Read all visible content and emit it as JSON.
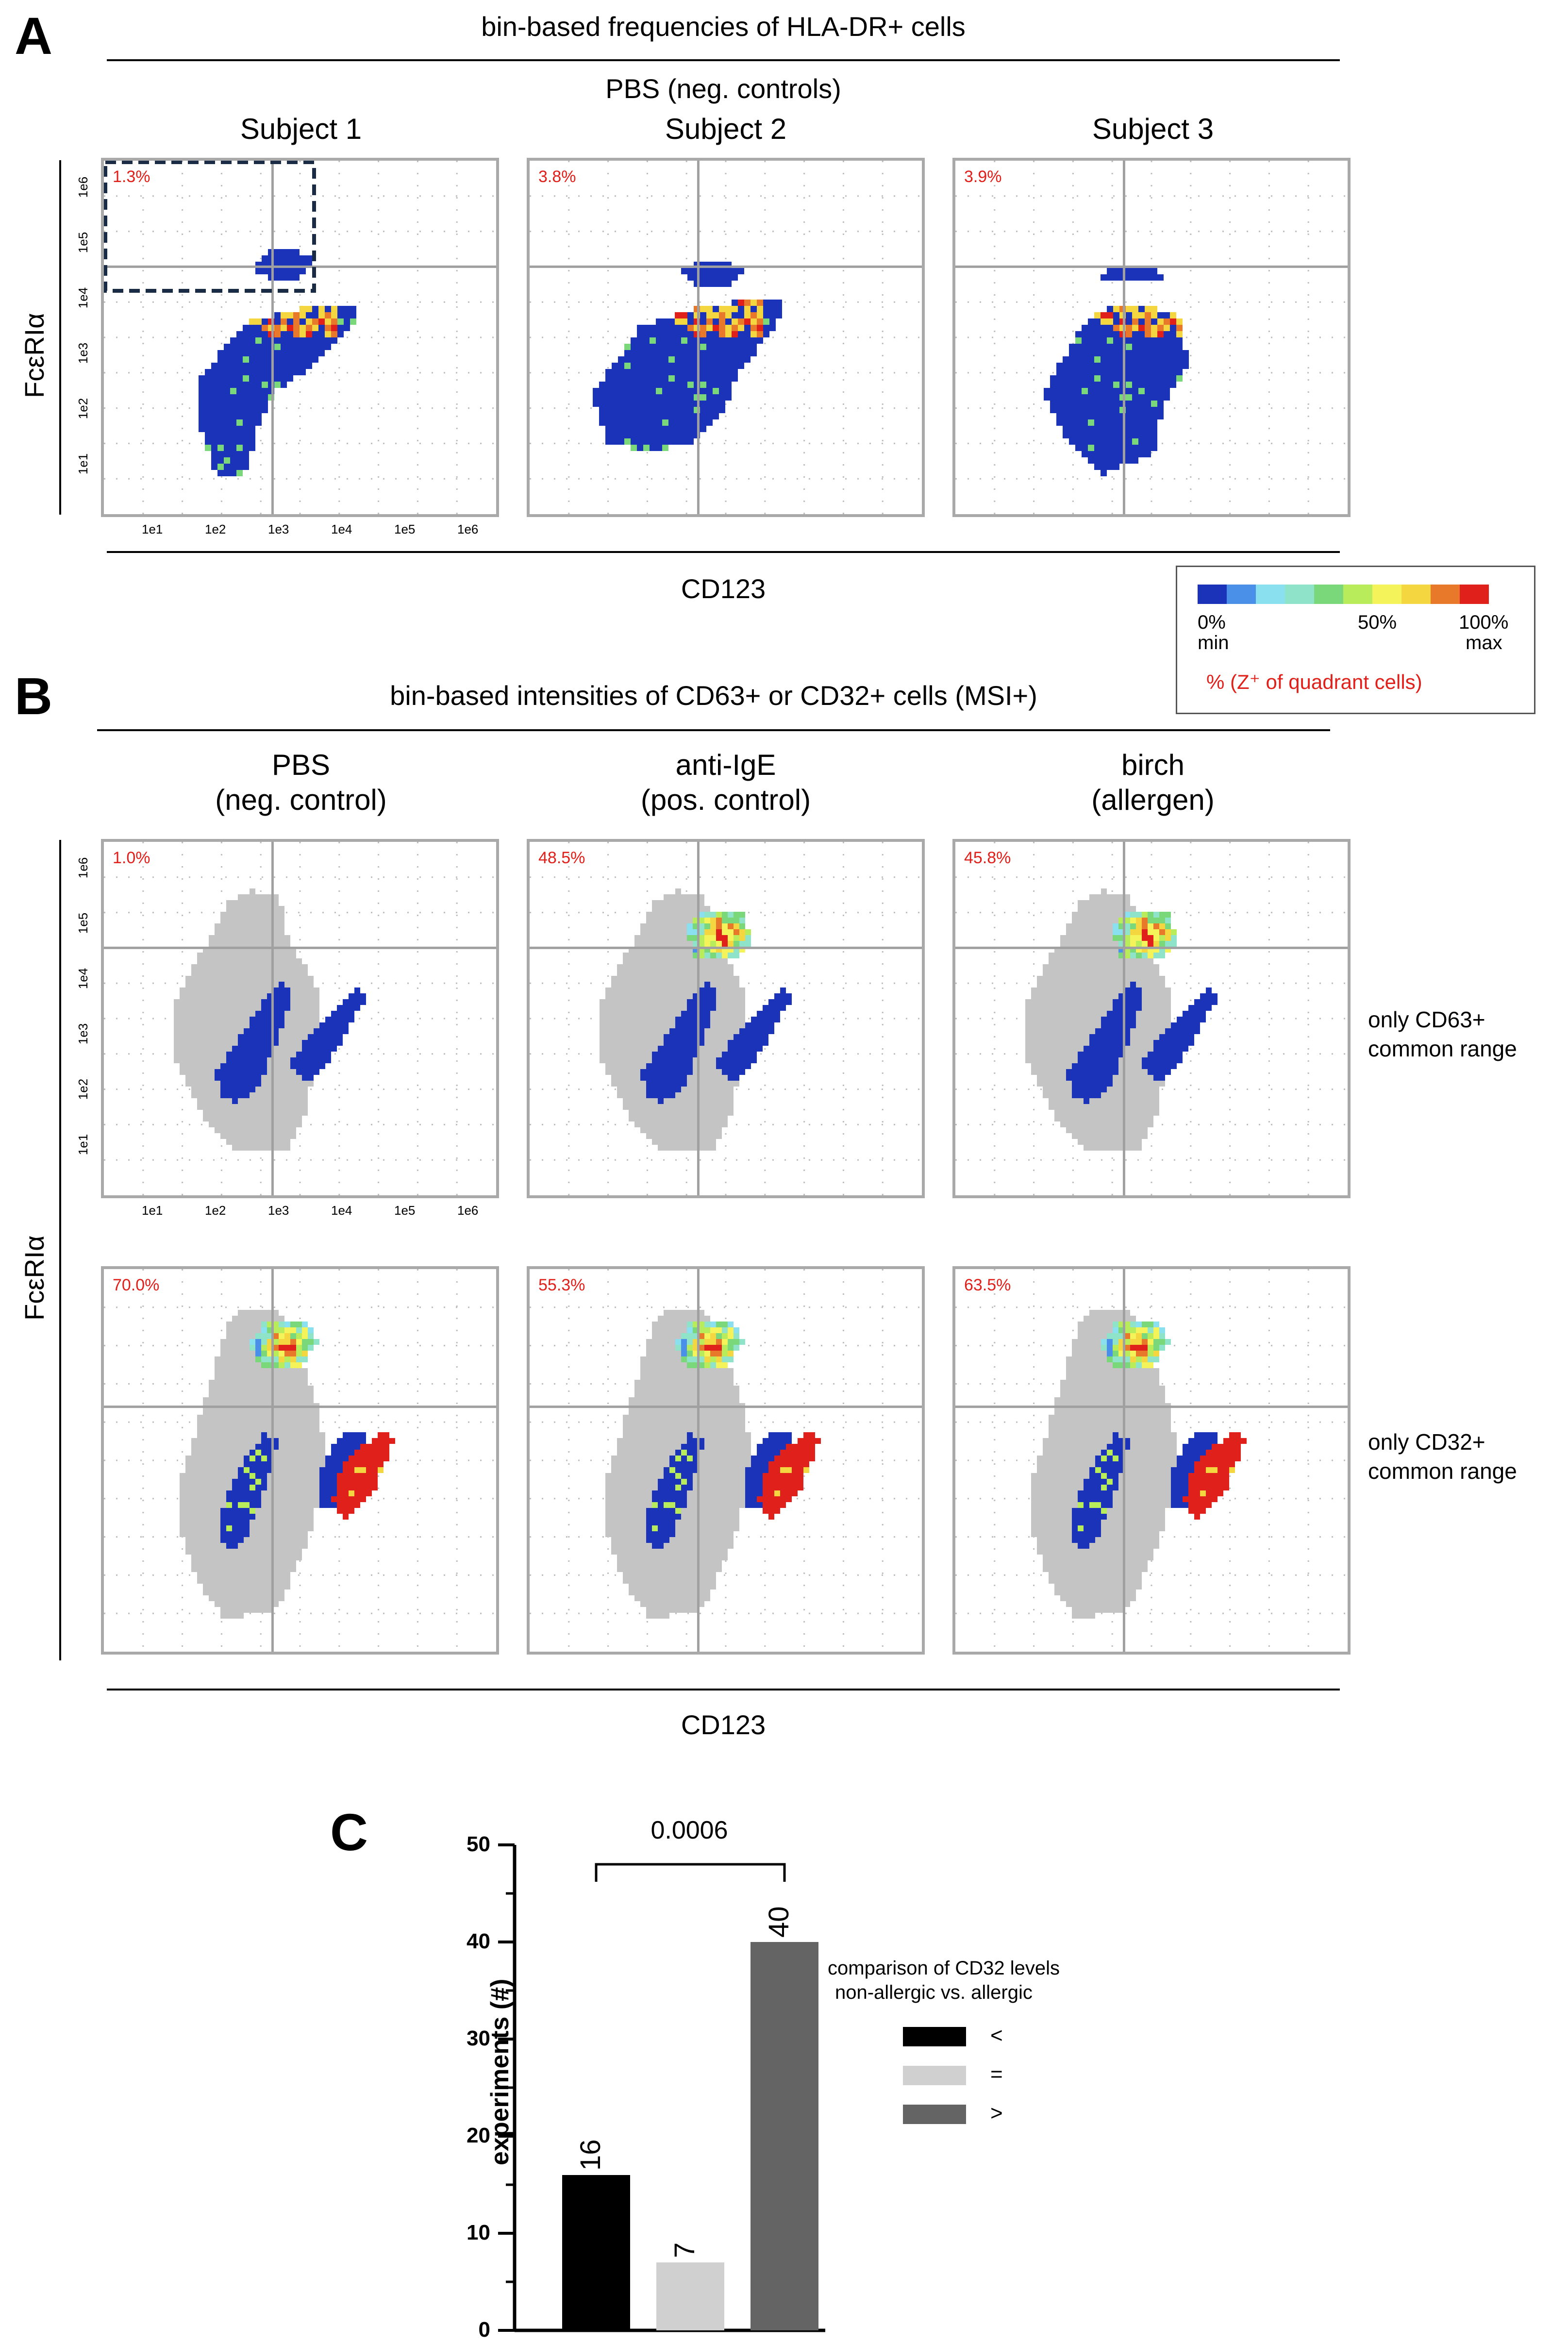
{
  "panelA": {
    "letter": "A",
    "title": "bin-based frequencies of HLA-DR+ cells",
    "group_title": "PBS (neg. controls)",
    "columns": [
      "Subject 1",
      "Subject 2",
      "Subject 3"
    ],
    "percents": [
      "1.3%",
      "3.8%",
      "3.9%"
    ],
    "ylabel": "FcεRIα",
    "xlabel": "CD123",
    "xticks": [
      "1e1",
      "1e2",
      "1e3",
      "1e4",
      "1e5",
      "1e6"
    ],
    "yticks": [
      "1e6",
      "1e5",
      "1e4",
      "1e3",
      "1e2",
      "1e1"
    ]
  },
  "legend": {
    "colors": [
      "#1a33b8",
      "#4a90e8",
      "#8be0f0",
      "#8fe3c8",
      "#7ad87a",
      "#b8ec5a",
      "#f4f45a",
      "#f4d640",
      "#e8782a",
      "#e0201a"
    ],
    "labels": {
      "min_pct": "0%",
      "min": "min",
      "mid_pct": "50%",
      "max_pct": "100%",
      "max": "max"
    },
    "footnote": "% (Z⁺ of quadrant cells)"
  },
  "panelB": {
    "letter": "B",
    "title": "bin-based intensities of CD63+ or CD32+ cells (MSI+)",
    "columns": [
      {
        "line1": "PBS",
        "line2": "(neg. control)"
      },
      {
        "line1": "anti-IgE",
        "line2": "(pos. control)"
      },
      {
        "line1": "birch",
        "line2": "(allergen)"
      }
    ],
    "row1_percents": [
      "1.0%",
      "48.5%",
      "45.8%"
    ],
    "row2_percents": [
      "70.0%",
      "55.3%",
      "63.5%"
    ],
    "row1_note": {
      "line1": "only CD63+",
      "line2": "common range"
    },
    "row2_note": {
      "line1": "only CD32+",
      "line2": "common range"
    },
    "ylabel": "FcεRIα",
    "xlabel": "CD123",
    "xticks": [
      "1e1",
      "1e2",
      "1e3",
      "1e4",
      "1e5",
      "1e6"
    ],
    "yticks": [
      "1e6",
      "1e5",
      "1e4",
      "1e3",
      "1e2",
      "1e1"
    ]
  },
  "panelC": {
    "letter": "C",
    "pvalue": "0.0006",
    "legend_title_1": "comparison of CD32 levels",
    "legend_title_2": "non-allergic vs. allergic",
    "legend_items": [
      {
        "label": "<",
        "color": "#000000"
      },
      {
        "label": "=",
        "color": "#d0d0d0"
      },
      {
        "label": ">",
        "color": "#646464"
      }
    ]
  },
  "chart_data": {
    "type": "bar",
    "categories": [
      "<",
      "=",
      ">"
    ],
    "values": [
      16,
      7,
      40
    ],
    "value_labels": [
      "16",
      "7",
      "40"
    ],
    "colors": [
      "#000000",
      "#d0d0d0",
      "#646464"
    ],
    "ylabel": "experiments (#)",
    "ylim": [
      0,
      50
    ],
    "yticks": [
      "0",
      "10",
      "20",
      "30",
      "40",
      "50"
    ],
    "title": ""
  }
}
